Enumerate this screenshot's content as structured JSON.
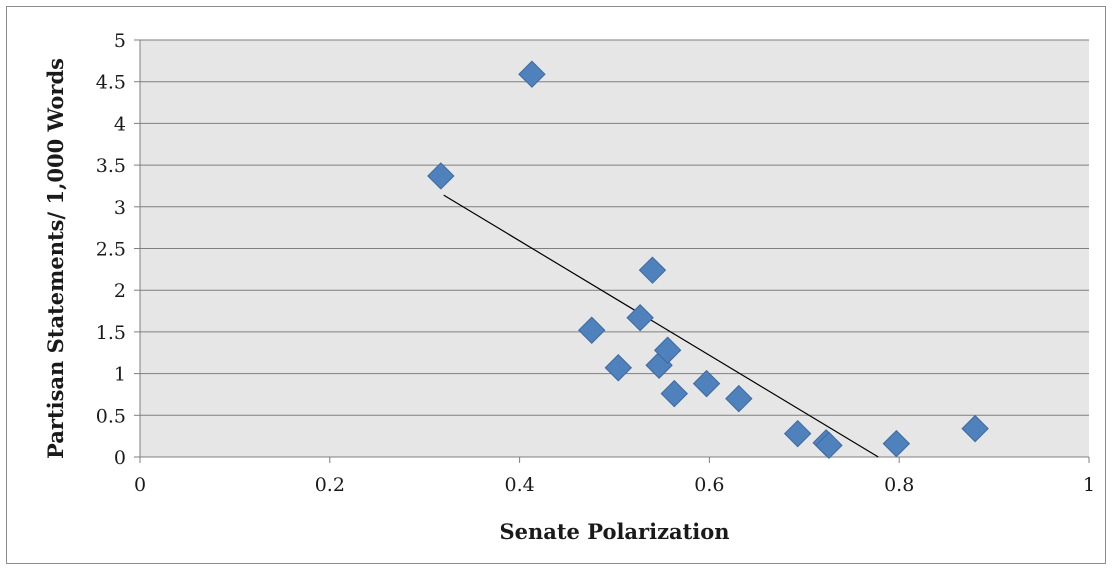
{
  "chart_data": {
    "type": "scatter",
    "title": "",
    "xlabel": "Senate Polarization",
    "ylabel": "Partisan Statements/ 1,000 Words",
    "xlim": [
      0,
      1
    ],
    "ylim": [
      0,
      5
    ],
    "x_ticks": [
      "0",
      "0.2",
      "0.4",
      "0.6",
      "0.8",
      "1"
    ],
    "y_ticks": [
      "0",
      "0.5",
      "1",
      "1.5",
      "2",
      "2.5",
      "3",
      "3.5",
      "4",
      "4.5",
      "5"
    ],
    "grid": "horizontal",
    "plot_background": "#e6e6e6",
    "gridline_color": "#7f7f7f",
    "marker": "diamond",
    "marker_color": "#4f81bd",
    "points": [
      {
        "x": 0.317,
        "y": 3.37
      },
      {
        "x": 0.413,
        "y": 4.59
      },
      {
        "x": 0.476,
        "y": 1.52
      },
      {
        "x": 0.504,
        "y": 1.07
      },
      {
        "x": 0.527,
        "y": 1.67
      },
      {
        "x": 0.54,
        "y": 2.24
      },
      {
        "x": 0.547,
        "y": 1.1
      },
      {
        "x": 0.556,
        "y": 1.28
      },
      {
        "x": 0.563,
        "y": 0.76
      },
      {
        "x": 0.597,
        "y": 0.88
      },
      {
        "x": 0.631,
        "y": 0.7
      },
      {
        "x": 0.693,
        "y": 0.28
      },
      {
        "x": 0.723,
        "y": 0.17
      },
      {
        "x": 0.726,
        "y": 0.14
      },
      {
        "x": 0.797,
        "y": 0.16
      },
      {
        "x": 0.88,
        "y": 0.34
      }
    ],
    "trendline": {
      "type": "linear",
      "color": "#000000",
      "start": {
        "x": 0.32,
        "y": 3.14
      },
      "end": {
        "x": 0.778,
        "y": 0.0
      }
    }
  }
}
